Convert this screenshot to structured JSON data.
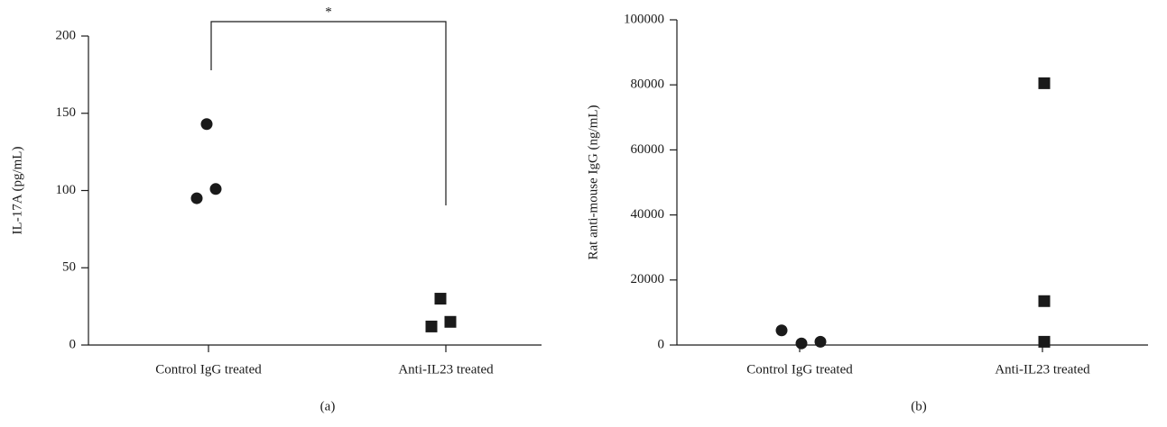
{
  "chart_data": [
    {
      "type": "dot",
      "ylabel": "IL-17A (pg/mL)",
      "categories": [
        "Control IgG treated",
        "Anti-IL23 treated"
      ],
      "values": [
        [
          143,
          95,
          101
        ],
        [
          30,
          12,
          15
        ]
      ],
      "markers": [
        "circle",
        "square"
      ],
      "color": "#1a1a1a",
      "ylim": [
        0,
        200
      ],
      "yticks": [
        0,
        50,
        100,
        150,
        200
      ],
      "annotation": "*",
      "caption": "(a)"
    },
    {
      "type": "dot",
      "ylabel": "Rat anti-mouse IgG (ng/mL)",
      "categories": [
        "Control IgG treated",
        "Anti-IL23 treated"
      ],
      "values": [
        [
          4500,
          500,
          1000
        ],
        [
          80500,
          13500,
          1000
        ]
      ],
      "markers": [
        "circle",
        "square"
      ],
      "color": "#1a1a1a",
      "ylim": [
        0,
        100000
      ],
      "yticks": [
        0,
        20000,
        40000,
        60000,
        80000,
        100000
      ],
      "caption": "(b)"
    }
  ]
}
